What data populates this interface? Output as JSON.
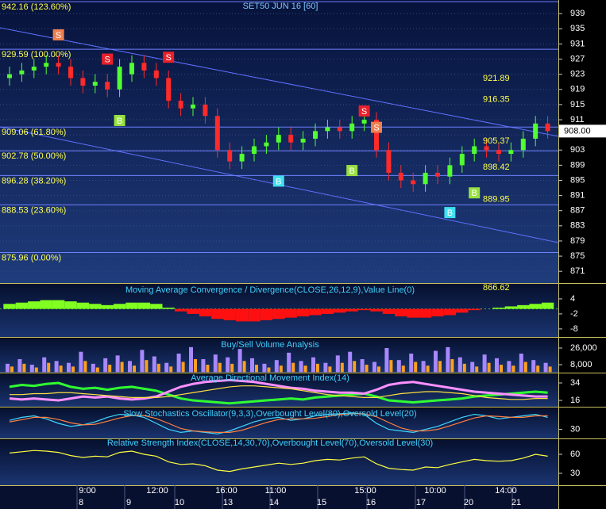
{
  "chart_data": [
    {
      "type": "candlestick",
      "title": "SET50 JUN 16  [60]",
      "open": [
        922,
        923,
        924,
        925,
        926,
        925,
        922,
        920,
        921,
        919,
        923,
        926,
        924,
        922,
        916,
        914,
        915,
        912,
        903,
        900,
        902,
        904,
        905,
        907,
        905,
        906,
        908,
        909,
        908,
        910,
        911,
        903,
        897,
        895,
        894,
        897,
        896,
        899,
        902,
        904,
        903,
        902,
        903,
        906,
        910
      ],
      "high": [
        925,
        926,
        927,
        928,
        928,
        927,
        924,
        923,
        923,
        927,
        928,
        928,
        926,
        924,
        918,
        917,
        917,
        914,
        905,
        904,
        906,
        907,
        909,
        909,
        908,
        910,
        911,
        911,
        912,
        913,
        913,
        905,
        899,
        897,
        899,
        899,
        901,
        904,
        906,
        906,
        905,
        905,
        908,
        912,
        912
      ],
      "low": [
        920,
        921,
        922,
        923,
        923,
        920,
        918,
        918,
        917,
        917,
        921,
        922,
        920,
        914,
        912,
        912,
        910,
        901,
        898,
        898,
        900,
        902,
        903,
        903,
        903,
        904,
        906,
        906,
        906,
        908,
        901,
        895,
        893,
        892,
        892,
        894,
        894,
        897,
        900,
        901,
        900,
        900,
        901,
        904,
        906
      ],
      "close": [
        923,
        924,
        925,
        926,
        925,
        922,
        920,
        921,
        919,
        925,
        926,
        924,
        922,
        916,
        914,
        915,
        912,
        903,
        900,
        902,
        904,
        905,
        907,
        905,
        906,
        908,
        909,
        908,
        910,
        911,
        903,
        897,
        895,
        894,
        897,
        896,
        899,
        902,
        904,
        903,
        902,
        903,
        906,
        910,
        908
      ],
      "up_color": "#50ff30",
      "down_color": "#ff2a2a",
      "ylim": [
        867.9,
        942.6
      ],
      "yticks": [
        939,
        935,
        931,
        927,
        923,
        919,
        915,
        911,
        907,
        903,
        899,
        895,
        891,
        887,
        883,
        879,
        875,
        871
      ],
      "grid": true,
      "fib_levels": [
        {
          "value": 942.16,
          "label": "942.16 (123.60%)"
        },
        {
          "value": 929.59,
          "label": "929.59 (100.00%)"
        },
        {
          "value": 909.06,
          "label": "909.06 (61.80%)"
        },
        {
          "value": 902.78,
          "label": "902.78 (50.00%)"
        },
        {
          "value": 896.28,
          "label": "896.28 (38.20%)"
        },
        {
          "value": 888.53,
          "label": "888.53 (23.60%)"
        },
        {
          "value": 875.96,
          "label": "875.96 (0.00%)"
        }
      ],
      "price_labels": [
        921.89,
        916.35,
        905.37,
        898.42,
        889.95,
        866.62
      ],
      "last_price": {
        "value": 908,
        "label": "908.00"
      },
      "signals": [
        {
          "label": "S",
          "color": "#e8202a",
          "values": [
            null,
            null,
            null,
            null,
            null,
            null,
            null,
            null,
            927,
            null,
            null,
            null,
            null,
            927.5,
            null,
            null,
            null,
            null,
            null,
            null,
            null,
            null,
            null,
            null,
            null,
            null,
            null,
            null,
            null,
            913.3,
            null,
            null,
            null,
            null,
            null,
            null,
            null,
            null,
            null,
            null,
            null,
            null,
            null,
            null,
            null
          ]
        },
        {
          "label": "S",
          "color": "#f08050",
          "values": [
            null,
            null,
            null,
            null,
            933.4,
            null,
            null,
            null,
            null,
            null,
            null,
            null,
            null,
            null,
            null,
            null,
            null,
            null,
            null,
            null,
            null,
            null,
            null,
            null,
            null,
            null,
            null,
            null,
            null,
            null,
            909,
            null,
            null,
            null,
            null,
            null,
            null,
            null,
            null,
            null,
            null,
            null,
            null,
            null,
            null
          ]
        },
        {
          "label": "B",
          "color": "#98e040",
          "values": [
            null,
            null,
            null,
            null,
            null,
            null,
            null,
            null,
            null,
            910.8,
            null,
            null,
            null,
            null,
            null,
            null,
            null,
            null,
            null,
            null,
            null,
            null,
            null,
            null,
            null,
            null,
            null,
            null,
            897.6,
            null,
            null,
            null,
            null,
            null,
            null,
            null,
            null,
            null,
            891.7,
            null,
            null,
            null,
            null,
            null,
            null
          ]
        },
        {
          "label": "B",
          "color": "#40e0f0",
          "values": [
            null,
            null,
            null,
            null,
            null,
            null,
            null,
            null,
            null,
            null,
            null,
            null,
            null,
            null,
            null,
            null,
            null,
            null,
            null,
            null,
            null,
            null,
            894.8,
            null,
            null,
            null,
            null,
            null,
            null,
            null,
            null,
            null,
            null,
            null,
            null,
            null,
            886.5,
            null,
            null,
            null,
            null,
            null,
            null,
            null,
            null
          ]
        }
      ]
    },
    {
      "type": "histogram",
      "title": "Moving Average Convergence / Divergence(CLOSE,26,12,9),Value Line(0)",
      "values": [
        2,
        2.5,
        3,
        3.5,
        3.5,
        3,
        2.5,
        2,
        1.5,
        2,
        2.5,
        2.5,
        2,
        0.5,
        -1,
        -2,
        -3,
        -4,
        -4.5,
        -5,
        -5,
        -4.5,
        -4,
        -3.5,
        -3,
        -2.5,
        -2,
        -1.5,
        -1,
        -0.5,
        -1,
        -2,
        -3,
        -3.5,
        -3.5,
        -3,
        -2.5,
        -1.5,
        -0.5,
        0,
        0.5,
        1,
        1.5,
        2,
        2.5
      ],
      "pos_color": "#80ff20",
      "neg_color": "#ff1010",
      "ylim": [
        -11.2,
        10
      ],
      "yticks": [
        4,
        -2,
        -8
      ]
    },
    {
      "type": "bar",
      "title": "Buy/Sell Volume Analysis",
      "series": [
        {
          "color": "#a888ff",
          "values": [
            9000,
            14000,
            8000,
            16000,
            12000,
            10000,
            22000,
            9000,
            15000,
            18000,
            12000,
            24000,
            17000,
            10000,
            20000,
            27000,
            14000,
            19000,
            16000,
            25000,
            15000,
            9000,
            13000,
            21000,
            12000,
            16000,
            10000,
            18000,
            22000,
            14000,
            11000,
            26000,
            13000,
            20000,
            12000,
            23000,
            27000,
            16000,
            11000,
            19000,
            15000,
            12000,
            20000,
            13000,
            10000
          ]
        },
        {
          "color": "#ffa020",
          "values": [
            6000,
            9000,
            5000,
            10000,
            7000,
            6000,
            12000,
            5000,
            8000,
            11000,
            7000,
            13000,
            9000,
            6000,
            11000,
            14000,
            8000,
            10000,
            9000,
            12000,
            8000,
            5000,
            7000,
            10000,
            7000,
            9000,
            6000,
            10000,
            12000,
            8000,
            6000,
            13000,
            7000,
            11000,
            7000,
            12000,
            14000,
            9000,
            6000,
            10000,
            8000,
            7000,
            11000,
            7000,
            6000
          ]
        }
      ],
      "ylim": [
        -570,
        36300
      ],
      "yticks": [
        {
          "value": 26000,
          "label": "26,000"
        },
        {
          "value": 8000,
          "label": "8,000"
        }
      ]
    },
    {
      "type": "line",
      "title": "Average Directional Movement Index(14)",
      "series": [
        {
          "color": "#30ff30",
          "values": [
            30,
            32,
            31,
            33,
            34,
            30,
            28,
            29,
            27,
            29,
            30,
            28,
            26,
            22,
            18,
            16,
            15,
            14,
            13,
            14,
            15,
            16,
            17,
            18,
            17,
            19,
            20,
            21,
            22,
            23,
            20,
            16,
            15,
            14,
            15,
            16,
            17,
            18,
            20,
            21,
            22,
            23,
            24,
            25,
            24
          ]
        },
        {
          "color": "#ff90ff",
          "values": [
            18,
            17,
            18,
            17,
            16,
            18,
            20,
            19,
            20,
            18,
            17,
            18,
            20,
            25,
            30,
            33,
            35,
            36,
            37,
            36,
            35,
            33,
            31,
            29,
            28,
            26,
            25,
            24,
            24,
            23,
            27,
            32,
            34,
            35,
            33,
            31,
            29,
            27,
            25,
            24,
            23,
            22,
            21,
            20,
            20
          ]
        },
        {
          "color": "#ffe040",
          "values": [
            22,
            22,
            23,
            23,
            24,
            24,
            23,
            22,
            21,
            20,
            19,
            19,
            19,
            20,
            22,
            24,
            26,
            28,
            30,
            31,
            31,
            30,
            29,
            28,
            26,
            24,
            22,
            21,
            20,
            19,
            19,
            21,
            23,
            24,
            25,
            25,
            24,
            23,
            21,
            19,
            18,
            17,
            17,
            18,
            18
          ]
        }
      ],
      "ylim": [
        9.5,
        43
      ],
      "yticks": [
        34,
        16
      ]
    },
    {
      "type": "line",
      "title": "Slow Stochastics Oscillator(9,3,3),Overbought Level(80),Oversold Level(20)",
      "series": [
        {
          "color": "#40d8ff",
          "values": [
            60,
            70,
            75,
            65,
            50,
            40,
            45,
            55,
            70,
            80,
            78,
            70,
            50,
            30,
            20,
            25,
            20,
            15,
            25,
            40,
            55,
            65,
            70,
            60,
            65,
            75,
            80,
            82,
            85,
            80,
            50,
            30,
            25,
            20,
            30,
            40,
            55,
            70,
            80,
            75,
            65,
            70,
            75,
            80,
            70
          ]
        },
        {
          "color": "#ff8040",
          "values": [
            55,
            62,
            70,
            70,
            63,
            52,
            45,
            47,
            57,
            68,
            76,
            76,
            66,
            50,
            33,
            25,
            22,
            20,
            20,
            27,
            40,
            53,
            63,
            65,
            65,
            67,
            73,
            79,
            82,
            82,
            72,
            53,
            35,
            25,
            25,
            30,
            42,
            55,
            68,
            75,
            73,
            70,
            70,
            75,
            75
          ]
        }
      ],
      "ylim": [
        0,
        100
      ],
      "yticks": [
        30
      ]
    },
    {
      "type": "line",
      "title": "Relative Strength Index(CLOSE,14,30,70),Overbought Level(70),Oversold Level(30)",
      "series": [
        {
          "color": "#ffff40",
          "values": [
            62,
            64,
            66,
            65,
            63,
            58,
            55,
            57,
            56,
            63,
            65,
            60,
            57,
            48,
            44,
            45,
            42,
            35,
            33,
            37,
            40,
            43,
            46,
            44,
            46,
            50,
            52,
            51,
            54,
            56,
            45,
            38,
            36,
            35,
            40,
            39,
            44,
            48,
            52,
            50,
            49,
            50,
            54,
            60,
            57
          ]
        }
      ],
      "ylim": [
        11.25,
        82.5
      ],
      "yticks": [
        60,
        30
      ]
    }
  ],
  "time_axis": {
    "times": [
      "9:00",
      "12:00",
      "16:00",
      "11:00",
      "15:00",
      "10:00",
      "14:00"
    ],
    "days": [
      "8",
      "9",
      "10",
      "13",
      "14",
      "15",
      "16",
      "17",
      "20",
      "21"
    ]
  }
}
